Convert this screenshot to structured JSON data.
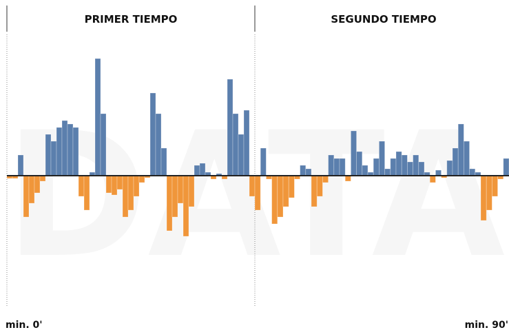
{
  "chart_data": {
    "type": "bar",
    "watermark": "DATA",
    "halves": [
      "PRIMER TIEMPO",
      "SEGUNDO TIEMPO"
    ],
    "start_label": "min. 0'",
    "end_label": "min. 90'",
    "positive_color": "#5b7fad",
    "negative_color": "#f0963a",
    "ylim": [
      -120,
      178
    ],
    "values": [
      -4,
      -4,
      30,
      -60,
      -40,
      -25,
      -8,
      60,
      50,
      70,
      80,
      75,
      70,
      -30,
      -50,
      5,
      170,
      90,
      -25,
      -28,
      -20,
      -60,
      -50,
      -30,
      -10,
      -3,
      120,
      90,
      40,
      -80,
      -60,
      -40,
      -88,
      -45,
      15,
      18,
      5,
      -5,
      3,
      -5,
      140,
      90,
      60,
      95,
      -30,
      -50,
      40,
      -5,
      -70,
      -60,
      -45,
      -32,
      -5,
      15,
      10,
      -45,
      -30,
      -10,
      30,
      25,
      25,
      -8,
      65,
      35,
      15,
      5,
      25,
      50,
      10,
      25,
      35,
      30,
      20,
      30,
      20,
      5,
      -10,
      8,
      -3,
      22,
      40,
      75,
      50,
      10,
      5,
      -65,
      -50,
      -30,
      -5,
      25
    ]
  }
}
